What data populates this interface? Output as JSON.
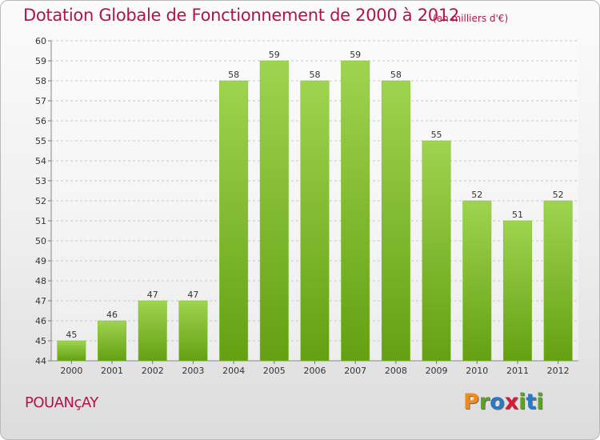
{
  "header": {
    "title": "Dotation Globale de Fonctionnement de 2000 à 2012",
    "unit": "(en milliers d'€)"
  },
  "footer": {
    "commune": "POUANçAY",
    "logo_text": "Proxiti"
  },
  "colors": {
    "title": "#b3124a",
    "bar_top": "#9ed44f",
    "bar_bottom": "#64a012",
    "grid": "#c8c8c8",
    "logo_letters": [
      "#f08c1a",
      "#5ba423",
      "#2b79c2",
      "#d51c3a",
      "#5ba423",
      "#2b79c2",
      "#5ba423"
    ]
  },
  "chart_data": {
    "type": "bar",
    "categories": [
      "2000",
      "2001",
      "2002",
      "2003",
      "2004",
      "2005",
      "2006",
      "2007",
      "2008",
      "2009",
      "2010",
      "2011",
      "2012"
    ],
    "values": [
      45,
      46,
      47,
      47,
      58,
      59,
      58,
      59,
      58,
      55,
      52,
      51,
      52
    ],
    "ylim": [
      44,
      60
    ],
    "yticks": [
      44,
      45,
      46,
      47,
      48,
      49,
      50,
      51,
      52,
      53,
      54,
      55,
      56,
      57,
      58,
      59,
      60
    ],
    "grid": true,
    "data_labels": true
  }
}
